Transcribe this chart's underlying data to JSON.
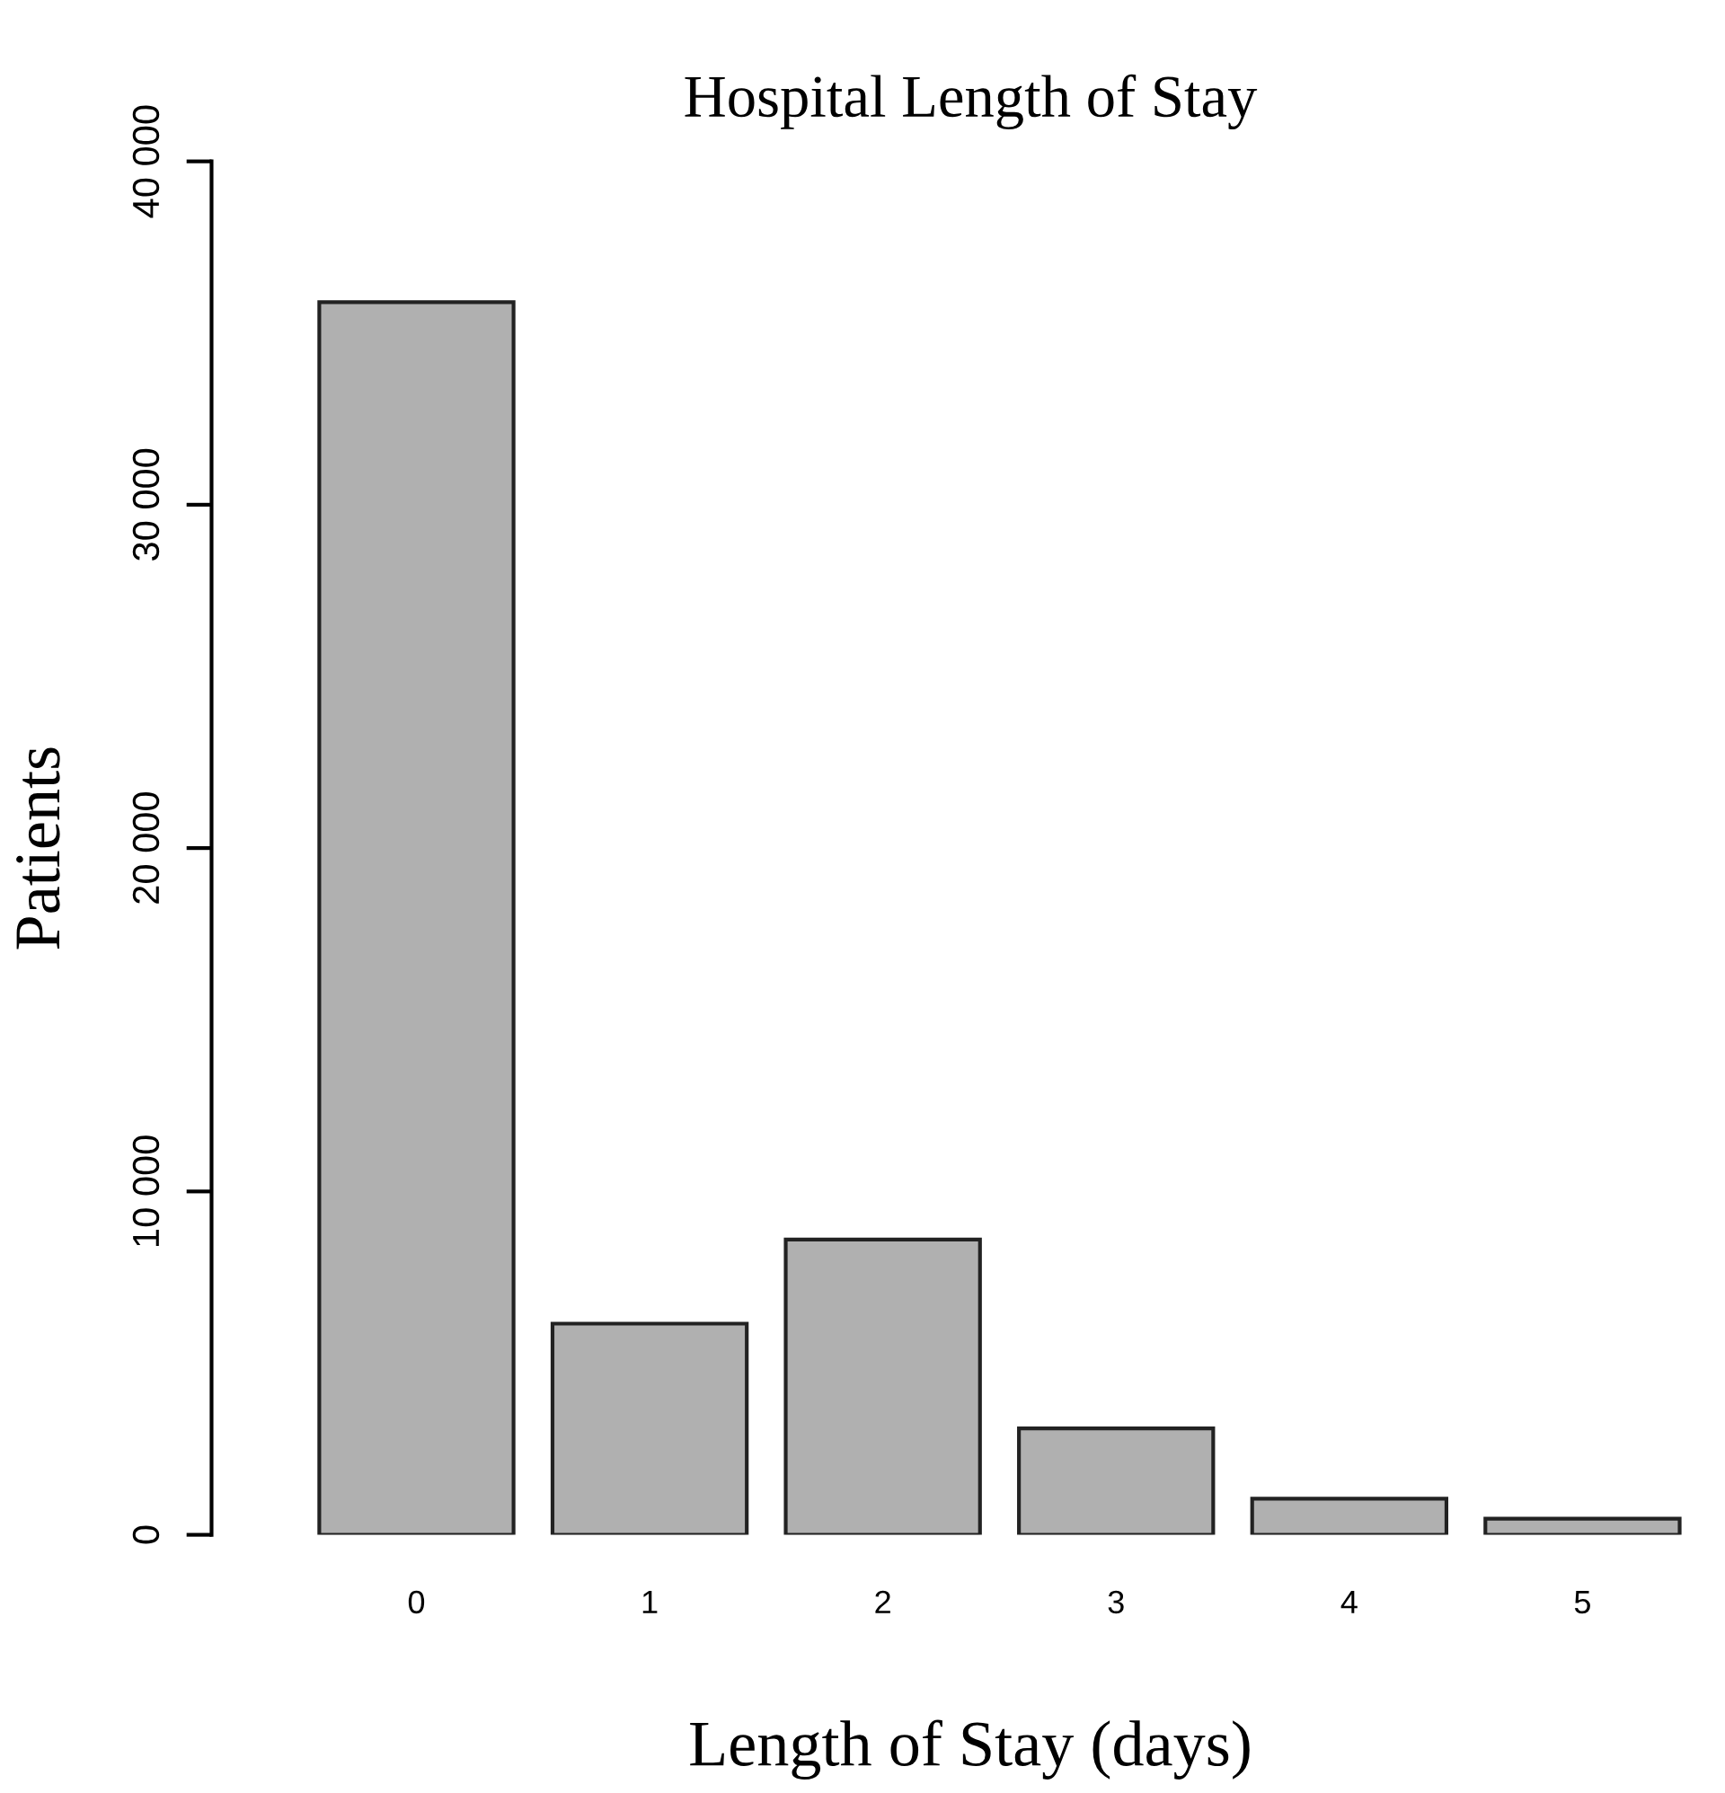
{
  "chart_data": {
    "type": "bar",
    "title": "Hospital Length of Stay",
    "xlabel": "Length of Stay (days)",
    "ylabel": "Patients",
    "categories": [
      "0",
      "1",
      "2",
      "3",
      "4",
      "5"
    ],
    "values": [
      35900,
      6150,
      8600,
      3100,
      1050,
      470
    ],
    "color": "#b0b0b0",
    "ylim": [
      0,
      40000
    ],
    "yticks": [
      0,
      {
        "value": 10000,
        "label": "10 000"
      },
      {
        "value": 20000,
        "label": "20 000"
      },
      {
        "value": 30000,
        "label": "30 000"
      },
      {
        "value": 40000,
        "label": "40 000"
      }
    ],
    "grid": false
  }
}
